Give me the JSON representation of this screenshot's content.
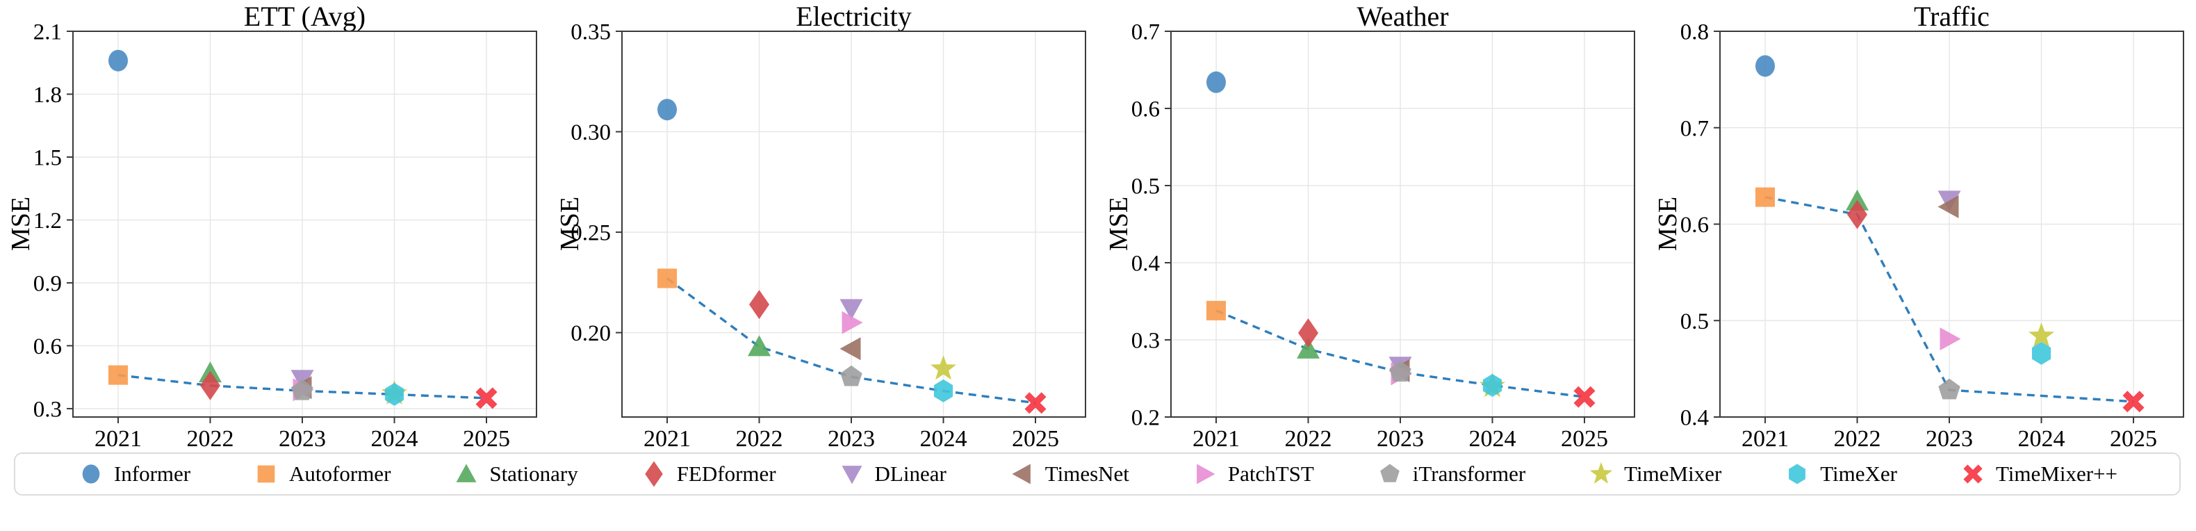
{
  "figure": {
    "kind": "academic-benchmark-figure",
    "x_axis_years": [
      2021,
      2022,
      2023,
      2024,
      2025
    ]
  },
  "style": {
    "background": "#ffffff",
    "grid_color": "#e7e7e7",
    "spine_color": "#3a3a3a",
    "trend_line_color": "#2e7ebc",
    "legend_border_color": "#dcdcdc"
  },
  "models": [
    {
      "name": "Informer",
      "marker": "circle",
      "color": "#4a8bc2"
    },
    {
      "name": "Autoformer",
      "marker": "square",
      "color": "#f89b4e"
    },
    {
      "name": "Stationary",
      "marker": "triangle_up",
      "color": "#55a85e"
    },
    {
      "name": "FEDformer",
      "marker": "diamond",
      "color": "#d4494c"
    },
    {
      "name": "DLinear",
      "marker": "triangle_down",
      "color": "#a98bc8"
    },
    {
      "name": "TimesNet",
      "marker": "triangle_left",
      "color": "#9c7164"
    },
    {
      "name": "PatchTST",
      "marker": "triangle_right",
      "color": "#e88dd3"
    },
    {
      "name": "iTransformer",
      "marker": "pentagon",
      "color": "#9e9e9e"
    },
    {
      "name": "TimeMixer",
      "marker": "star",
      "color": "#c9c93f"
    },
    {
      "name": "TimeXer",
      "marker": "hexagon",
      "color": "#3fc6dc"
    },
    {
      "name": "TimeMixer++",
      "marker": "x",
      "color": "#f5333f"
    }
  ],
  "legend": {
    "items": [
      "Informer",
      "Autoformer",
      "Stationary",
      "FEDformer",
      "DLinear",
      "TimesNet",
      "PatchTST",
      "iTransformer",
      "TimeMixer",
      "TimeXer",
      "TimeMixer++"
    ]
  },
  "chart_data": [
    {
      "type": "scatter",
      "title": "ETT (Avg)",
      "ylabel": "MSE",
      "x": [
        2021,
        2022,
        2023,
        2024,
        2025
      ],
      "ylim": [
        0.26,
        2.1
      ],
      "yticks": [
        0.3,
        0.6,
        0.9,
        1.2,
        1.5,
        1.8,
        2.1
      ],
      "ytick_decimals": 1,
      "grid": true,
      "points": [
        {
          "model": "Informer",
          "year": 2021,
          "mse": 1.96
        },
        {
          "model": "Autoformer",
          "year": 2021,
          "mse": 0.46
        },
        {
          "model": "Stationary",
          "year": 2022,
          "mse": 0.47
        },
        {
          "model": "FEDformer",
          "year": 2022,
          "mse": 0.41
        },
        {
          "model": "DLinear",
          "year": 2023,
          "mse": 0.44
        },
        {
          "model": "TimesNet",
          "year": 2023,
          "mse": 0.4
        },
        {
          "model": "PatchTST",
          "year": 2023,
          "mse": 0.39
        },
        {
          "model": "iTransformer",
          "year": 2023,
          "mse": 0.385
        },
        {
          "model": "TimeMixer",
          "year": 2024,
          "mse": 0.372
        },
        {
          "model": "TimeXer",
          "year": 2024,
          "mse": 0.368
        },
        {
          "model": "TimeMixer++",
          "year": 2025,
          "mse": 0.35
        }
      ],
      "sota_line": {
        "years": [
          2021,
          2022,
          2023,
          2024,
          2025
        ],
        "mse": [
          0.46,
          0.41,
          0.385,
          0.368,
          0.35
        ]
      }
    },
    {
      "type": "scatter",
      "title": "Electricity",
      "ylabel": "MSE",
      "x": [
        2021,
        2022,
        2023,
        2024,
        2025
      ],
      "ylim": [
        0.158,
        0.35
      ],
      "yticks": [
        0.2,
        0.25,
        0.3,
        0.35
      ],
      "ytick_decimals": 2,
      "grid": true,
      "points": [
        {
          "model": "Informer",
          "year": 2021,
          "mse": 0.311
        },
        {
          "model": "Autoformer",
          "year": 2021,
          "mse": 0.227
        },
        {
          "model": "Stationary",
          "year": 2022,
          "mse": 0.193
        },
        {
          "model": "FEDformer",
          "year": 2022,
          "mse": 0.214
        },
        {
          "model": "DLinear",
          "year": 2023,
          "mse": 0.212
        },
        {
          "model": "TimesNet",
          "year": 2023,
          "mse": 0.192
        },
        {
          "model": "PatchTST",
          "year": 2023,
          "mse": 0.205
        },
        {
          "model": "iTransformer",
          "year": 2023,
          "mse": 0.178
        },
        {
          "model": "TimeMixer",
          "year": 2024,
          "mse": 0.182
        },
        {
          "model": "TimeXer",
          "year": 2024,
          "mse": 0.171
        },
        {
          "model": "TimeMixer++",
          "year": 2025,
          "mse": 0.165
        }
      ],
      "sota_line": {
        "years": [
          2021,
          2022,
          2023,
          2024,
          2025
        ],
        "mse": [
          0.227,
          0.193,
          0.178,
          0.171,
          0.165
        ]
      }
    },
    {
      "type": "scatter",
      "title": "Weather",
      "ylabel": "MSE",
      "x": [
        2021,
        2022,
        2023,
        2024,
        2025
      ],
      "ylim": [
        0.2,
        0.7
      ],
      "yticks": [
        0.2,
        0.3,
        0.4,
        0.5,
        0.6,
        0.7
      ],
      "ytick_decimals": 1,
      "grid": true,
      "points": [
        {
          "model": "Informer",
          "year": 2021,
          "mse": 0.634
        },
        {
          "model": "Autoformer",
          "year": 2021,
          "mse": 0.338
        },
        {
          "model": "Stationary",
          "year": 2022,
          "mse": 0.288
        },
        {
          "model": "FEDformer",
          "year": 2022,
          "mse": 0.309
        },
        {
          "model": "DLinear",
          "year": 2023,
          "mse": 0.266
        },
        {
          "model": "TimesNet",
          "year": 2023,
          "mse": 0.26
        },
        {
          "model": "PatchTST",
          "year": 2023,
          "mse": 0.256
        },
        {
          "model": "iTransformer",
          "year": 2023,
          "mse": 0.258
        },
        {
          "model": "TimeMixer",
          "year": 2024,
          "mse": 0.24
        },
        {
          "model": "TimeXer",
          "year": 2024,
          "mse": 0.241
        },
        {
          "model": "TimeMixer++",
          "year": 2025,
          "mse": 0.226
        }
      ],
      "sota_line": {
        "years": [
          2021,
          2022,
          2023,
          2024,
          2025
        ],
        "mse": [
          0.338,
          0.288,
          0.258,
          0.241,
          0.226
        ]
      }
    },
    {
      "type": "scatter",
      "title": "Traffic",
      "ylabel": "MSE",
      "x": [
        2021,
        2022,
        2023,
        2024,
        2025
      ],
      "ylim": [
        0.4,
        0.8
      ],
      "yticks": [
        0.4,
        0.5,
        0.6,
        0.7,
        0.8
      ],
      "ytick_decimals": 1,
      "grid": true,
      "points": [
        {
          "model": "Informer",
          "year": 2021,
          "mse": 0.764
        },
        {
          "model": "Autoformer",
          "year": 2021,
          "mse": 0.628
        },
        {
          "model": "Stationary",
          "year": 2022,
          "mse": 0.624
        },
        {
          "model": "FEDformer",
          "year": 2022,
          "mse": 0.61
        },
        {
          "model": "DLinear",
          "year": 2023,
          "mse": 0.625
        },
        {
          "model": "TimesNet",
          "year": 2023,
          "mse": 0.618
        },
        {
          "model": "PatchTST",
          "year": 2023,
          "mse": 0.481
        },
        {
          "model": "iTransformer",
          "year": 2023,
          "mse": 0.428
        },
        {
          "model": "TimeMixer",
          "year": 2024,
          "mse": 0.484
        },
        {
          "model": "TimeXer",
          "year": 2024,
          "mse": 0.466
        },
        {
          "model": "TimeMixer++",
          "year": 2025,
          "mse": 0.416
        }
      ],
      "sota_line": {
        "years": [
          2021,
          2022,
          2023,
          2025
        ],
        "mse": [
          0.628,
          0.61,
          0.428,
          0.416
        ]
      }
    }
  ]
}
